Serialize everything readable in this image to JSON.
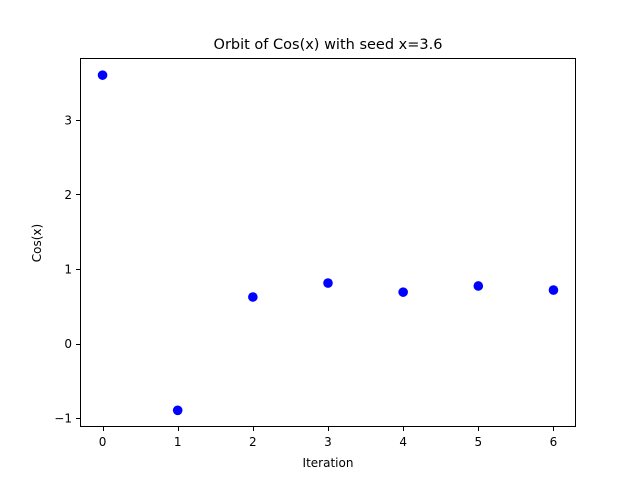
{
  "chart_data": {
    "type": "scatter",
    "title": "Orbit of Cos(x) with seed x=3.6",
    "xlabel": "Iteration",
    "ylabel": "Cos(x)",
    "x": [
      0,
      1,
      2,
      3,
      4,
      5,
      6
    ],
    "y": [
      3.6,
      -0.896,
      0.624,
      0.811,
      0.689,
      0.772,
      0.717
    ],
    "xlim": [
      -0.3,
      6.3
    ],
    "ylim": [
      -1.12,
      3.83
    ],
    "xticks": [
      0,
      1,
      2,
      3,
      4,
      5,
      6
    ],
    "xtick_labels": [
      "0",
      "1",
      "2",
      "3",
      "4",
      "5",
      "6"
    ],
    "yticks": [
      -1,
      0,
      1,
      2,
      3
    ],
    "ytick_labels": [
      "−1",
      "0",
      "1",
      "2",
      "3"
    ],
    "marker_color": "#0000ff",
    "grid": false
  }
}
